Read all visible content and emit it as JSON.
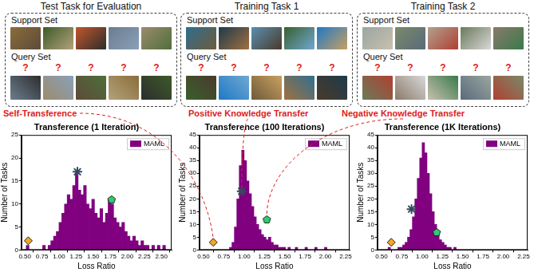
{
  "panels": [
    {
      "title": "Test Task for Evaluation",
      "support_label": "Support Set",
      "query_label": "Query Set",
      "query_marks": [
        "?",
        "?",
        "?",
        "?",
        "?"
      ]
    },
    {
      "title": "Training Task 1",
      "support_label": "Support Set",
      "query_label": "Query Set",
      "query_marks": [
        "?",
        "?",
        "?",
        "?",
        "?"
      ]
    },
    {
      "title": "Training Task 2",
      "support_label": "Support Set",
      "query_label": "Query Set",
      "query_marks": [
        "?",
        "?",
        "?",
        "?",
        "?"
      ]
    }
  ],
  "annotations": [
    "Self-Transference",
    "Positive Knowledge Transfer",
    "Negative Knowledge Transfer"
  ],
  "chart_data": [
    {
      "type": "histogram",
      "title": "Transference (1 Iteration)",
      "x_label": "Loss Ratio",
      "y_label": "Number of Tasks",
      "xlim": [
        0.45,
        2.65
      ],
      "xticks": [
        {
          "value": 0.5,
          "label": "0.50"
        },
        {
          "value": 0.75,
          "label": "0.75"
        },
        {
          "value": 1.0,
          "label": "1.00"
        },
        {
          "value": 1.25,
          "label": "1.25"
        },
        {
          "value": 1.5,
          "label": "1.50"
        },
        {
          "value": 1.75,
          "label": "1.75"
        },
        {
          "value": 2.0,
          "label": "2.00"
        },
        {
          "value": 2.25,
          "label": "2.25"
        },
        {
          "value": 2.5,
          "label": "2.50"
        }
      ],
      "ylim": [
        0,
        25
      ],
      "yticks": [
        0,
        5,
        10,
        15,
        20,
        25
      ],
      "grid": false,
      "legend": "upper right",
      "series": [
        {
          "name": "MAML",
          "color": "#800080",
          "bins": [
            0.52,
            0.56,
            0.6,
            0.64,
            0.68,
            0.72,
            0.76,
            0.8,
            0.84,
            0.88,
            0.92,
            0.96,
            1.0,
            1.04,
            1.08,
            1.12,
            1.16,
            1.2,
            1.24,
            1.28,
            1.32,
            1.36,
            1.4,
            1.44,
            1.48,
            1.52,
            1.56,
            1.6,
            1.64,
            1.68,
            1.72,
            1.76,
            1.8,
            1.84,
            1.88,
            1.92,
            1.96,
            2.0,
            2.04,
            2.08,
            2.12,
            2.16,
            2.2,
            2.24,
            2.28,
            2.32,
            2.36,
            2.4,
            2.44,
            2.48,
            2.52,
            2.56
          ],
          "counts": [
            1,
            0,
            0,
            0,
            0,
            0,
            1,
            0,
            1,
            2,
            3,
            4,
            6,
            8,
            10,
            12,
            11,
            14,
            17,
            13,
            12,
            14,
            10,
            9,
            11,
            8,
            7,
            9,
            6,
            8,
            11,
            10,
            7,
            6,
            5,
            6,
            4,
            3,
            2,
            3,
            2,
            1,
            2,
            1,
            1,
            0,
            1,
            0,
            1,
            0,
            1
          ]
        }
      ],
      "points": [
        {
          "x": 0.55,
          "y": 2,
          "marker": "diamond",
          "color": "#f5a623"
        },
        {
          "x": 1.27,
          "y": 17,
          "marker": "star",
          "color": "#34495e"
        },
        {
          "x": 1.77,
          "y": 11,
          "marker": "pentagon",
          "color": "#2ecc71"
        }
      ]
    },
    {
      "type": "histogram",
      "title": "Transference (100 Iterations)",
      "x_label": "Loss Ratio",
      "y_label": "Number of Tasks",
      "xlim": [
        0.45,
        2.3
      ],
      "xticks": [
        {
          "value": 0.5,
          "label": "0.50"
        },
        {
          "value": 0.75,
          "label": "0.75"
        },
        {
          "value": 1.0,
          "label": "1.00"
        },
        {
          "value": 1.25,
          "label": "1.25"
        },
        {
          "value": 1.5,
          "label": "1.50"
        },
        {
          "value": 1.75,
          "label": "1.75"
        },
        {
          "value": 2.0,
          "label": "2.00"
        },
        {
          "value": 2.25,
          "label": "2.25"
        }
      ],
      "ylim": [
        0,
        45
      ],
      "yticks": [
        0,
        5,
        10,
        15,
        20,
        25,
        30,
        35,
        40,
        45
      ],
      "grid": false,
      "legend": "upper right",
      "series": [
        {
          "name": "MAML",
          "color": "#800080",
          "bins": [
            0.82,
            0.85,
            0.88,
            0.91,
            0.94,
            0.97,
            1.0,
            1.03,
            1.06,
            1.09,
            1.12,
            1.15,
            1.18,
            1.21,
            1.24,
            1.27,
            1.3,
            1.33,
            1.36,
            1.39,
            1.42,
            1.45,
            1.48,
            1.51,
            1.54,
            1.57,
            1.6,
            1.63,
            1.66,
            1.69,
            1.72,
            1.75,
            1.78,
            1.81,
            1.84,
            1.87,
            1.9,
            1.93,
            1.96,
            1.99,
            2.02
          ],
          "counts": [
            1,
            3,
            9,
            20,
            33,
            39,
            35,
            27,
            22,
            17,
            13,
            10,
            8,
            6,
            5,
            4,
            5,
            3,
            2,
            2,
            1,
            1,
            1,
            0,
            1,
            0,
            0,
            1,
            0,
            0,
            0,
            1,
            0,
            0,
            0,
            1,
            0,
            0,
            0,
            1
          ]
        }
      ],
      "points": [
        {
          "x": 0.62,
          "y": 3,
          "marker": "diamond",
          "color": "#f5a623"
        },
        {
          "x": 0.97,
          "y": 23,
          "marker": "star",
          "color": "#34495e"
        },
        {
          "x": 1.28,
          "y": 12,
          "marker": "pentagon",
          "color": "#2ecc71"
        }
      ]
    },
    {
      "type": "histogram",
      "title": "Transference (1K Iterations)",
      "x_label": "Loss Ratio",
      "y_label": "Number of Tasks",
      "xlim": [
        0.45,
        2.3
      ],
      "xticks": [
        {
          "value": 0.5,
          "label": "0.50"
        },
        {
          "value": 0.75,
          "label": "0.75"
        },
        {
          "value": 1.0,
          "label": "1.00"
        },
        {
          "value": 1.25,
          "label": "1.25"
        },
        {
          "value": 1.5,
          "label": "1.50"
        },
        {
          "value": 1.75,
          "label": "1.75"
        },
        {
          "value": 2.0,
          "label": "2.00"
        },
        {
          "value": 2.25,
          "label": "2.25"
        }
      ],
      "ylim": [
        0,
        45
      ],
      "yticks": [
        0,
        5,
        10,
        15,
        20,
        25,
        30,
        35,
        40,
        45
      ],
      "grid": false,
      "legend": "upper right",
      "series": [
        {
          "name": "MAML",
          "color": "#800080",
          "bins": [
            0.58,
            0.61,
            0.64,
            0.67,
            0.7,
            0.73,
            0.76,
            0.79,
            0.82,
            0.85,
            0.88,
            0.91,
            0.94,
            0.97,
            1.0,
            1.03,
            1.06,
            1.09,
            1.12,
            1.15,
            1.18,
            1.21,
            1.24,
            1.27,
            1.3,
            1.33,
            1.36,
            1.39,
            1.42
          ],
          "counts": [
            1,
            0,
            0,
            0,
            1,
            1,
            2,
            3,
            5,
            8,
            13,
            20,
            28,
            36,
            42,
            38,
            30,
            22,
            15,
            10,
            6,
            4,
            3,
            2,
            1,
            1,
            0,
            1
          ]
        }
      ],
      "points": [
        {
          "x": 0.62,
          "y": 3,
          "marker": "diamond",
          "color": "#f5a623"
        },
        {
          "x": 0.87,
          "y": 16,
          "marker": "star",
          "color": "#34495e"
        },
        {
          "x": 1.18,
          "y": 7,
          "marker": "pentagon",
          "color": "#2ecc71"
        }
      ]
    }
  ]
}
